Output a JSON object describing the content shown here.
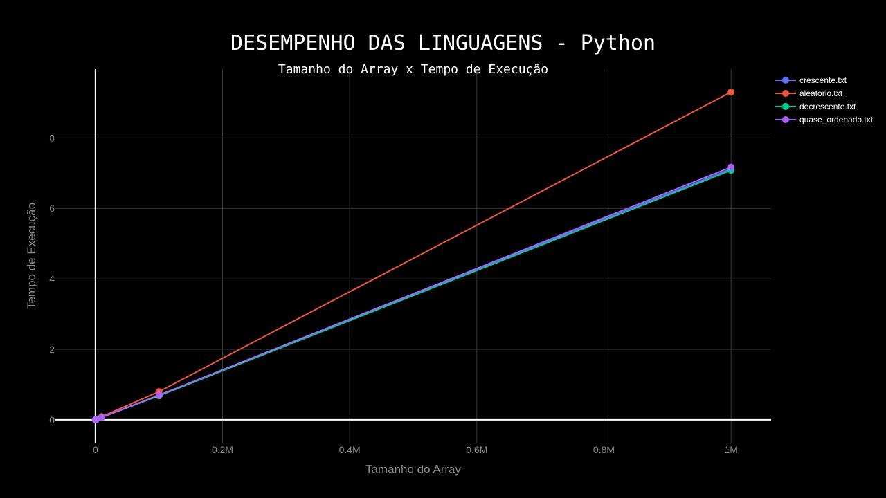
{
  "chart_data": {
    "type": "line",
    "title": "DESEMPENHO DAS LINGUAGENS - Python",
    "subtitle": "Tamanho do Array x Tempo de Execução",
    "xlabel": "Tamanho do Array",
    "ylabel": "Tempo de Execução",
    "x_ticks": [
      {
        "value": 0,
        "label": "0"
      },
      {
        "value": 200000,
        "label": "0.2M"
      },
      {
        "value": 400000,
        "label": "0.4M"
      },
      {
        "value": 600000,
        "label": "0.6M"
      },
      {
        "value": 800000,
        "label": "0.8M"
      },
      {
        "value": 1000000,
        "label": "1M"
      }
    ],
    "y_ticks": [
      {
        "value": 0,
        "label": "0"
      },
      {
        "value": 2,
        "label": "2"
      },
      {
        "value": 4,
        "label": "4"
      },
      {
        "value": 6,
        "label": "6"
      },
      {
        "value": 8,
        "label": "8"
      }
    ],
    "xlim": [
      -63000,
      1063000
    ],
    "ylim": [
      -0.65,
      9.95
    ],
    "grid": true,
    "legend_position": "top-right",
    "x": [
      1000,
      10000,
      100000,
      1000000
    ],
    "series": [
      {
        "name": "crescente.txt",
        "color": "#636efa",
        "values": [
          0.007,
          0.07,
          0.69,
          7.12
        ]
      },
      {
        "name": "aleatorio.txt",
        "color": "#ef553b",
        "values": [
          0.009,
          0.09,
          0.8,
          9.3
        ]
      },
      {
        "name": "decrescente.txt",
        "color": "#00cc96",
        "values": [
          0.007,
          0.07,
          0.68,
          7.08
        ]
      },
      {
        "name": "quase_ordenado.txt",
        "color": "#ab63fa",
        "values": [
          0.007,
          0.07,
          0.7,
          7.17
        ]
      }
    ]
  }
}
